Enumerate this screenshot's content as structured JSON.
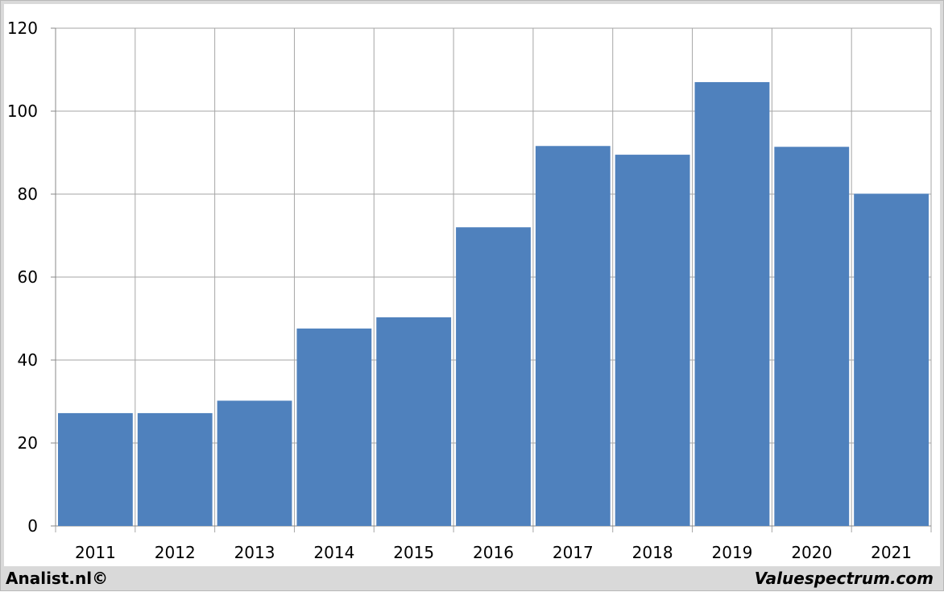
{
  "footer": {
    "left_text": "Analist.nl©",
    "right_text": "Valuespectrum.com"
  },
  "colors": {
    "bar": "#4f81bd",
    "grid": "#a6a6a6",
    "axis": "#888888"
  },
  "chart_data": {
    "type": "bar",
    "categories": [
      "2011",
      "2012",
      "2013",
      "2014",
      "2015",
      "2016",
      "2017",
      "2018",
      "2019",
      "2020",
      "2021"
    ],
    "values": [
      27.2,
      27.2,
      30.2,
      47.6,
      50.3,
      72.0,
      91.6,
      89.5,
      107.0,
      91.4,
      80.1
    ],
    "title": "",
    "xlabel": "",
    "ylabel": "",
    "ylim": [
      0,
      120
    ],
    "yticks": [
      "0",
      "20",
      "40",
      "60",
      "80",
      "100",
      "120"
    ],
    "grid": true,
    "legend": "none"
  }
}
